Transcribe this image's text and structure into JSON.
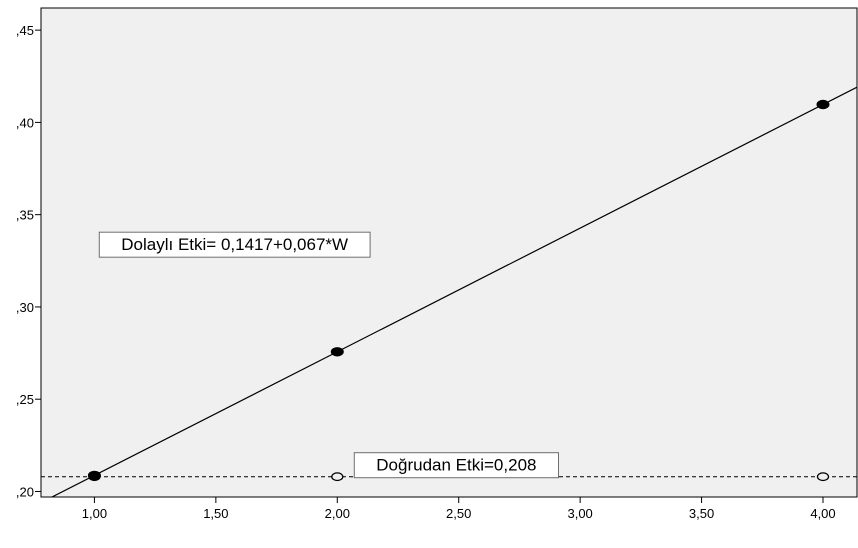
{
  "chart_data": {
    "type": "line",
    "title": "",
    "xlabel": "",
    "ylabel": "",
    "xlim": [
      0.78,
      4.14
    ],
    "ylim": [
      0.197,
      0.462
    ],
    "x_ticks": [
      1.0,
      1.5,
      2.0,
      2.5,
      3.0,
      3.5,
      4.0
    ],
    "x_tick_labels": [
      "1,00",
      "1,50",
      "2,00",
      "2,50",
      "3,00",
      "3,50",
      "4,00"
    ],
    "y_ticks": [
      0.2,
      0.25,
      0.3,
      0.35,
      0.4,
      0.45
    ],
    "y_tick_labels": [
      ",20",
      ",25",
      ",30",
      ",35",
      ",40",
      ",45"
    ],
    "grid": false,
    "series": [
      {
        "style": "solid-line-filled-markers",
        "x": [
          1.0,
          2.0,
          4.0
        ],
        "y": [
          0.2087,
          0.2757,
          0.4097
        ],
        "line_intercept": 0.1417,
        "line_slope": 0.067
      },
      {
        "style": "dashed-line-hollow-markers",
        "x": [
          1.0,
          2.0,
          4.0
        ],
        "y": [
          0.208,
          0.208,
          0.208
        ]
      }
    ],
    "annotations": [
      {
        "text": "Dolaylı Etki= 0,1417+0,067*W",
        "x": 1.02,
        "y": 0.334
      },
      {
        "text": "Doğrudan Etki=0,208",
        "x": 2.07,
        "y": 0.2145
      }
    ],
    "colors": {
      "plot_background": "#f0f0f0",
      "line": "#000000"
    }
  }
}
